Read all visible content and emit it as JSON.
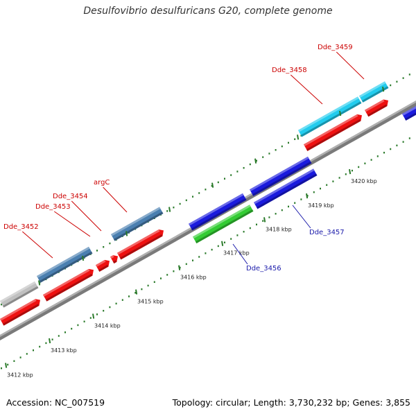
{
  "title": "Desulfovibrio desulfuricans G20, complete genome",
  "accession": "Accession: NC_007519",
  "topology": "Topology: circular; Length: 3,730,232 bp; Genes: 3,855",
  "colors": {
    "forward_label": "#cc0000",
    "reverse_label": "#1a1aaa",
    "cds_red": "#ee1111",
    "steelblue": "#4a7fb0",
    "cyan": "#22ccee",
    "blue": "#1a1add",
    "green": "#33cc33",
    "gray": "#c0c0c0",
    "backbone": "#888888",
    "tick_green": "#2a7a2a"
  },
  "ticks": [
    {
      "label": "3412 kbp"
    },
    {
      "label": "3413 kbp"
    },
    {
      "label": "3414 kbp"
    },
    {
      "label": "3415 kbp"
    },
    {
      "label": "3416 kbp"
    },
    {
      "label": "3417 kbp"
    },
    {
      "label": "3418 kbp"
    },
    {
      "label": "3419 kbp"
    },
    {
      "label": "3420 kbp"
    }
  ],
  "gene_labels": [
    {
      "name": "Dde_3452",
      "strand": "forward"
    },
    {
      "name": "Dde_3453",
      "strand": "forward"
    },
    {
      "name": "Dde_3454",
      "strand": "forward"
    },
    {
      "name": "argC",
      "strand": "forward"
    },
    {
      "name": "Dde_3458",
      "strand": "forward"
    },
    {
      "name": "Dde_3459",
      "strand": "forward"
    },
    {
      "name": "Dde_3456",
      "strand": "reverse"
    },
    {
      "name": "Dde_3457",
      "strand": "reverse"
    }
  ]
}
